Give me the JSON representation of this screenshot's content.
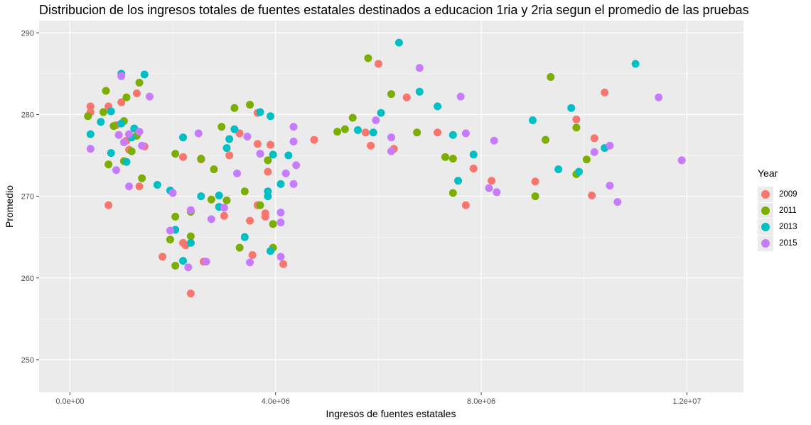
{
  "chart_data": {
    "type": "scatter",
    "title": "Distribucion de los ingresos totales de fuentes estatales destinados a educacion 1ria y 2ria segun el promedio de las pruebas",
    "xlabel": "Ingresos de fuentes estatales",
    "ylabel": "Promedio",
    "xlim": [
      -600000,
      13100000
    ],
    "ylim": [
      246,
      291.5
    ],
    "x_ticks": [
      0,
      4000000,
      8000000,
      12000000
    ],
    "x_tick_labels": [
      "0.0e+00",
      "4.0e+06",
      "8.0e+06",
      "1.2e+07"
    ],
    "y_ticks": [
      250,
      260,
      270,
      280,
      290
    ],
    "y_tick_labels": [
      "250",
      "260",
      "270",
      "280",
      "290"
    ],
    "grid": true,
    "legend": {
      "title": "Year",
      "position": "right"
    },
    "series": [
      {
        "name": "2009",
        "color": "#F8766D",
        "points": [
          [
            400000,
            281
          ],
          [
            400000,
            280.3
          ],
          [
            750000,
            281
          ],
          [
            1000000,
            281.5
          ],
          [
            1300000,
            282.6
          ],
          [
            900000,
            278.7
          ],
          [
            950000,
            277.5
          ],
          [
            1100000,
            276.8
          ],
          [
            1150000,
            275.7
          ],
          [
            1450000,
            276.1
          ],
          [
            750000,
            268.9
          ],
          [
            1350000,
            271.2
          ],
          [
            1800000,
            262.6
          ],
          [
            2200000,
            274.8
          ],
          [
            2550000,
            274.5
          ],
          [
            2200000,
            264.3
          ],
          [
            2250000,
            264
          ],
          [
            2600000,
            262
          ],
          [
            2350000,
            258.1
          ],
          [
            3100000,
            275
          ],
          [
            3300000,
            277.7
          ],
          [
            3650000,
            280.2
          ],
          [
            3650000,
            276.4
          ],
          [
            3900000,
            276.3
          ],
          [
            3850000,
            273
          ],
          [
            3650000,
            268.9
          ],
          [
            3800000,
            267.9
          ],
          [
            3800000,
            267.5
          ],
          [
            3000000,
            267.6
          ],
          [
            3500000,
            267
          ],
          [
            3550000,
            262.8
          ],
          [
            4150000,
            261.7
          ],
          [
            4750000,
            276.9
          ],
          [
            5750000,
            277.8
          ],
          [
            5850000,
            276.2
          ],
          [
            6000000,
            286.2
          ],
          [
            6300000,
            275.8
          ],
          [
            6550000,
            282.1
          ],
          [
            7150000,
            277.8
          ],
          [
            7700000,
            268.9
          ],
          [
            7850000,
            273.4
          ],
          [
            8200000,
            271.9
          ],
          [
            9050000,
            271.8
          ],
          [
            9850000,
            279.4
          ],
          [
            10150000,
            270.1
          ],
          [
            10200000,
            277.1
          ],
          [
            10400000,
            282.7
          ]
        ]
      },
      {
        "name": "2011",
        "color": "#7CAE00",
        "points": [
          [
            350000,
            279.8
          ],
          [
            650000,
            280.3
          ],
          [
            700000,
            282.9
          ],
          [
            1100000,
            282.1
          ],
          [
            1350000,
            283.9
          ],
          [
            850000,
            278.6
          ],
          [
            1050000,
            279.2
          ],
          [
            1050000,
            274.3
          ],
          [
            1200000,
            275.5
          ],
          [
            1300000,
            277.4
          ],
          [
            750000,
            273.9
          ],
          [
            1400000,
            272.2
          ],
          [
            2050000,
            275.2
          ],
          [
            2550000,
            274.6
          ],
          [
            2800000,
            273.3
          ],
          [
            2050000,
            267.5
          ],
          [
            1950000,
            264.7
          ],
          [
            2350000,
            265.1
          ],
          [
            2350000,
            268.1
          ],
          [
            2050000,
            261.5
          ],
          [
            2750000,
            269.6
          ],
          [
            3050000,
            269.5
          ],
          [
            3200000,
            280.8
          ],
          [
            3500000,
            281.2
          ],
          [
            2950000,
            278.5
          ],
          [
            3400000,
            270.6
          ],
          [
            3300000,
            263.7
          ],
          [
            3700000,
            268.9
          ],
          [
            3850000,
            274.4
          ],
          [
            3950000,
            266.6
          ],
          [
            3950000,
            263.7
          ],
          [
            5200000,
            277.9
          ],
          [
            5350000,
            278.2
          ],
          [
            5500000,
            279.6
          ],
          [
            5800000,
            286.9
          ],
          [
            6250000,
            282.5
          ],
          [
            6750000,
            277.8
          ],
          [
            7300000,
            274.8
          ],
          [
            7450000,
            274.6
          ],
          [
            7450000,
            270.4
          ],
          [
            9050000,
            270
          ],
          [
            9250000,
            276.9
          ],
          [
            9350000,
            284.6
          ],
          [
            9850000,
            278.4
          ],
          [
            9850000,
            272.7
          ],
          [
            10050000,
            274.5
          ]
        ]
      },
      {
        "name": "2013",
        "color": "#00BFC4",
        "points": [
          [
            1000000,
            285
          ],
          [
            1450000,
            284.9
          ],
          [
            800000,
            280.4
          ],
          [
            600000,
            279.1
          ],
          [
            1000000,
            278.9
          ],
          [
            1250000,
            278.3
          ],
          [
            400000,
            277.6
          ],
          [
            1200000,
            277.2
          ],
          [
            800000,
            275.3
          ],
          [
            1100000,
            274.2
          ],
          [
            1700000,
            271.4
          ],
          [
            2200000,
            277.2
          ],
          [
            1950000,
            270.7
          ],
          [
            2050000,
            265.9
          ],
          [
            2550000,
            270
          ],
          [
            2350000,
            264.3
          ],
          [
            2200000,
            262.1
          ],
          [
            2900000,
            270.1
          ],
          [
            2900000,
            268.7
          ],
          [
            3050000,
            275.9
          ],
          [
            3100000,
            277
          ],
          [
            3200000,
            278.2
          ],
          [
            3700000,
            280.3
          ],
          [
            3900000,
            279.8
          ],
          [
            3700000,
            275.2
          ],
          [
            3950000,
            275.1
          ],
          [
            4250000,
            275
          ],
          [
            4100000,
            271.5
          ],
          [
            3850000,
            270.6
          ],
          [
            3850000,
            270
          ],
          [
            3400000,
            265
          ],
          [
            3900000,
            263.3
          ],
          [
            5600000,
            278.1
          ],
          [
            5900000,
            277.8
          ],
          [
            6050000,
            280.2
          ],
          [
            6400000,
            288.8
          ],
          [
            6800000,
            282.8
          ],
          [
            7150000,
            281
          ],
          [
            7450000,
            277.5
          ],
          [
            7550000,
            271.9
          ],
          [
            7850000,
            275.1
          ],
          [
            9000000,
            279.3
          ],
          [
            9500000,
            273.3
          ],
          [
            9750000,
            280.8
          ],
          [
            9900000,
            273
          ],
          [
            10400000,
            275.9
          ],
          [
            11000000,
            286.2
          ]
        ]
      },
      {
        "name": "2015",
        "color": "#C77CFF",
        "points": [
          [
            1000000,
            284.7
          ],
          [
            1550000,
            282.2
          ],
          [
            950000,
            277.5
          ],
          [
            1150000,
            277.6
          ],
          [
            1350000,
            277.9
          ],
          [
            1400000,
            276.2
          ],
          [
            1050000,
            276.6
          ],
          [
            400000,
            275.8
          ],
          [
            900000,
            273.2
          ],
          [
            1150000,
            271.2
          ],
          [
            2000000,
            270.4
          ],
          [
            1950000,
            265.8
          ],
          [
            2500000,
            277.7
          ],
          [
            2350000,
            268.3
          ],
          [
            2650000,
            262
          ],
          [
            2300000,
            261.3
          ],
          [
            2750000,
            267.2
          ],
          [
            3000000,
            268.6
          ],
          [
            3250000,
            272.8
          ],
          [
            3450000,
            277.3
          ],
          [
            3700000,
            275.2
          ],
          [
            4350000,
            278.5
          ],
          [
            4350000,
            276.7
          ],
          [
            4200000,
            272.8
          ],
          [
            4400000,
            273.8
          ],
          [
            4350000,
            271.5
          ],
          [
            4100000,
            268
          ],
          [
            4100000,
            266.8
          ],
          [
            4100000,
            262.6
          ],
          [
            3500000,
            261.9
          ],
          [
            5950000,
            279.3
          ],
          [
            6250000,
            277.2
          ],
          [
            6250000,
            275.5
          ],
          [
            6800000,
            285.7
          ],
          [
            7600000,
            282.2
          ],
          [
            7700000,
            277.7
          ],
          [
            8250000,
            276.8
          ],
          [
            8150000,
            271
          ],
          [
            8300000,
            270.5
          ],
          [
            10200000,
            275.4
          ],
          [
            10500000,
            276.2
          ],
          [
            10500000,
            271.3
          ],
          [
            10650000,
            269.3
          ],
          [
            11450000,
            282.1
          ],
          [
            11900000,
            274.4
          ]
        ]
      }
    ]
  }
}
